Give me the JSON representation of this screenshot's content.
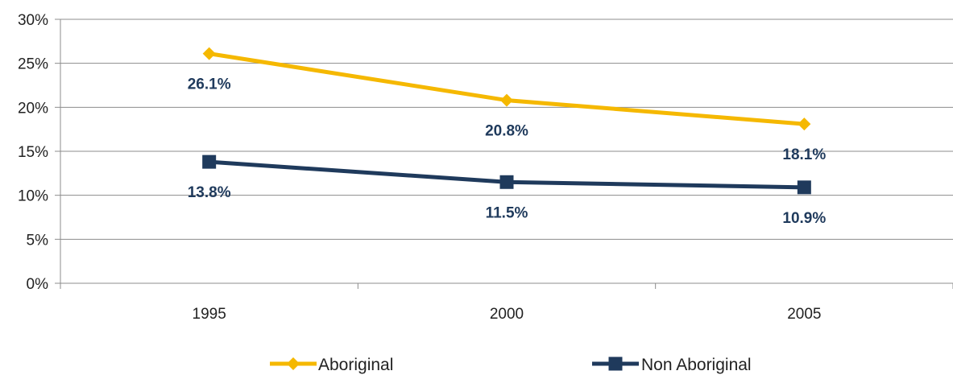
{
  "chart_data": {
    "type": "line",
    "categories": [
      "1995",
      "2000",
      "2005"
    ],
    "series": [
      {
        "name": "Aboriginal",
        "values": [
          26.1,
          20.8,
          18.1
        ],
        "labels": [
          "26.1%",
          "20.8%",
          "18.1%"
        ],
        "color": "#F5B800",
        "label_color": "#1F3A5C",
        "marker": "diamond"
      },
      {
        "name": "Non Aboriginal",
        "values": [
          13.8,
          11.5,
          10.9
        ],
        "labels": [
          "13.8%",
          "11.5%",
          "10.9%"
        ],
        "color": "#1F3A5C",
        "label_color": "#1F3A5C",
        "marker": "square"
      }
    ],
    "ylim": [
      0,
      30
    ],
    "yticks": [
      0,
      5,
      10,
      15,
      20,
      25,
      30
    ],
    "ytick_labels": [
      "0%",
      "5%",
      "10%",
      "15%",
      "20%",
      "25%",
      "30%"
    ],
    "grid": true,
    "legend": "bottom",
    "title": "",
    "xlabel": "",
    "ylabel": ""
  }
}
